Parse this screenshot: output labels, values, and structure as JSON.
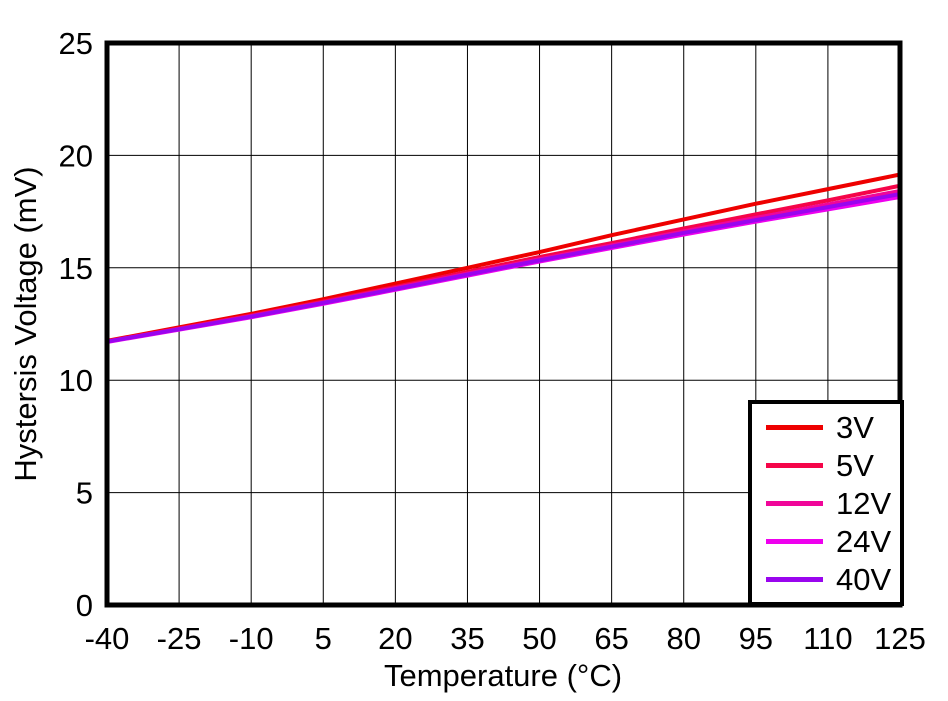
{
  "figure": {
    "background": "#ffffff",
    "axis_color": "#000000"
  },
  "chart_data": {
    "type": "line",
    "title": "",
    "xlabel": "Temperature (°C)",
    "ylabel": "Hystersis Voltage (mV)",
    "xlim": [
      -40,
      125
    ],
    "ylim": [
      0,
      25
    ],
    "xticks": [
      -40,
      -25,
      -10,
      5,
      20,
      35,
      50,
      65,
      80,
      95,
      110,
      125
    ],
    "yticks": [
      0,
      5,
      10,
      15,
      20,
      25
    ],
    "grid": true,
    "legend_position": "bottom-right",
    "x": [
      -40,
      -25,
      -10,
      5,
      20,
      35,
      50,
      65,
      80,
      95,
      110,
      125
    ],
    "series": [
      {
        "name": "3V",
        "color": "#ee0000",
        "values": [
          11.75,
          12.35,
          12.95,
          13.6,
          14.3,
          15.0,
          15.7,
          16.45,
          17.15,
          17.85,
          18.5,
          19.15
        ]
      },
      {
        "name": "5V",
        "color": "#f50549",
        "values": [
          11.73,
          12.3,
          12.88,
          13.5,
          14.15,
          14.82,
          15.48,
          16.1,
          16.75,
          17.38,
          18.0,
          18.65
        ]
      },
      {
        "name": "12V",
        "color": "#f00699",
        "values": [
          11.72,
          12.28,
          12.85,
          13.46,
          14.1,
          14.74,
          15.38,
          16.0,
          16.62,
          17.22,
          17.82,
          18.42
        ]
      },
      {
        "name": "24V",
        "color": "#ee00ee",
        "values": [
          11.7,
          12.25,
          12.8,
          13.4,
          14.02,
          14.65,
          15.28,
          15.88,
          16.48,
          17.05,
          17.6,
          18.15
        ]
      },
      {
        "name": "40V",
        "color": "#9905ee",
        "values": [
          11.72,
          12.27,
          12.83,
          13.44,
          14.06,
          14.7,
          15.33,
          15.94,
          16.55,
          17.12,
          17.7,
          18.28
        ]
      }
    ]
  }
}
